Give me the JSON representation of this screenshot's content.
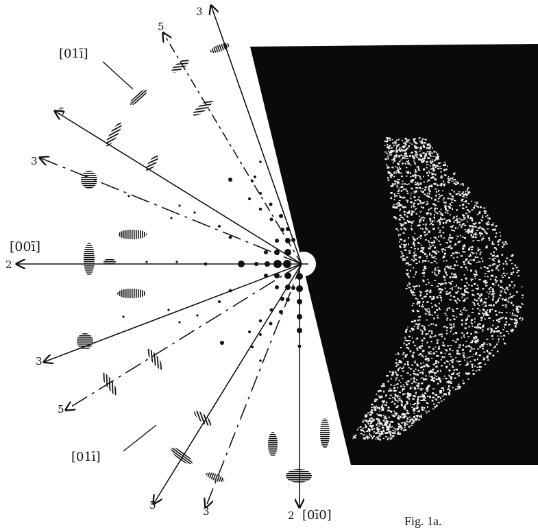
{
  "figure": {
    "caption": "Fig. 1a.",
    "labels": {
      "dir_001": "[00ī]",
      "dir_011_upper": "[01ī]",
      "dir_011_lower": "[01ī]",
      "dir_010": "[0ī0]",
      "h_axis_order": "2",
      "v_axis_order": "2",
      "ray_upper_3_top": "3",
      "ray_upper_5_top": "5",
      "ray_upper_5_mid": "5",
      "ray_upper_3_left": "3",
      "ray_lower_3_left": "3",
      "ray_lower_5_left": "5",
      "ray_lower_5_bottom": "5",
      "ray_lower_3_bottom": "3"
    }
  }
}
